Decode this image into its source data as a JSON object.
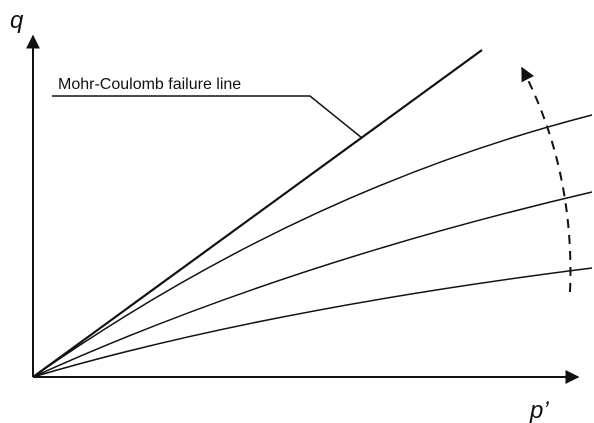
{
  "axes": {
    "y_label": "q",
    "x_label": "p’"
  },
  "annotation": "Mohr-Coulomb failure line"
}
